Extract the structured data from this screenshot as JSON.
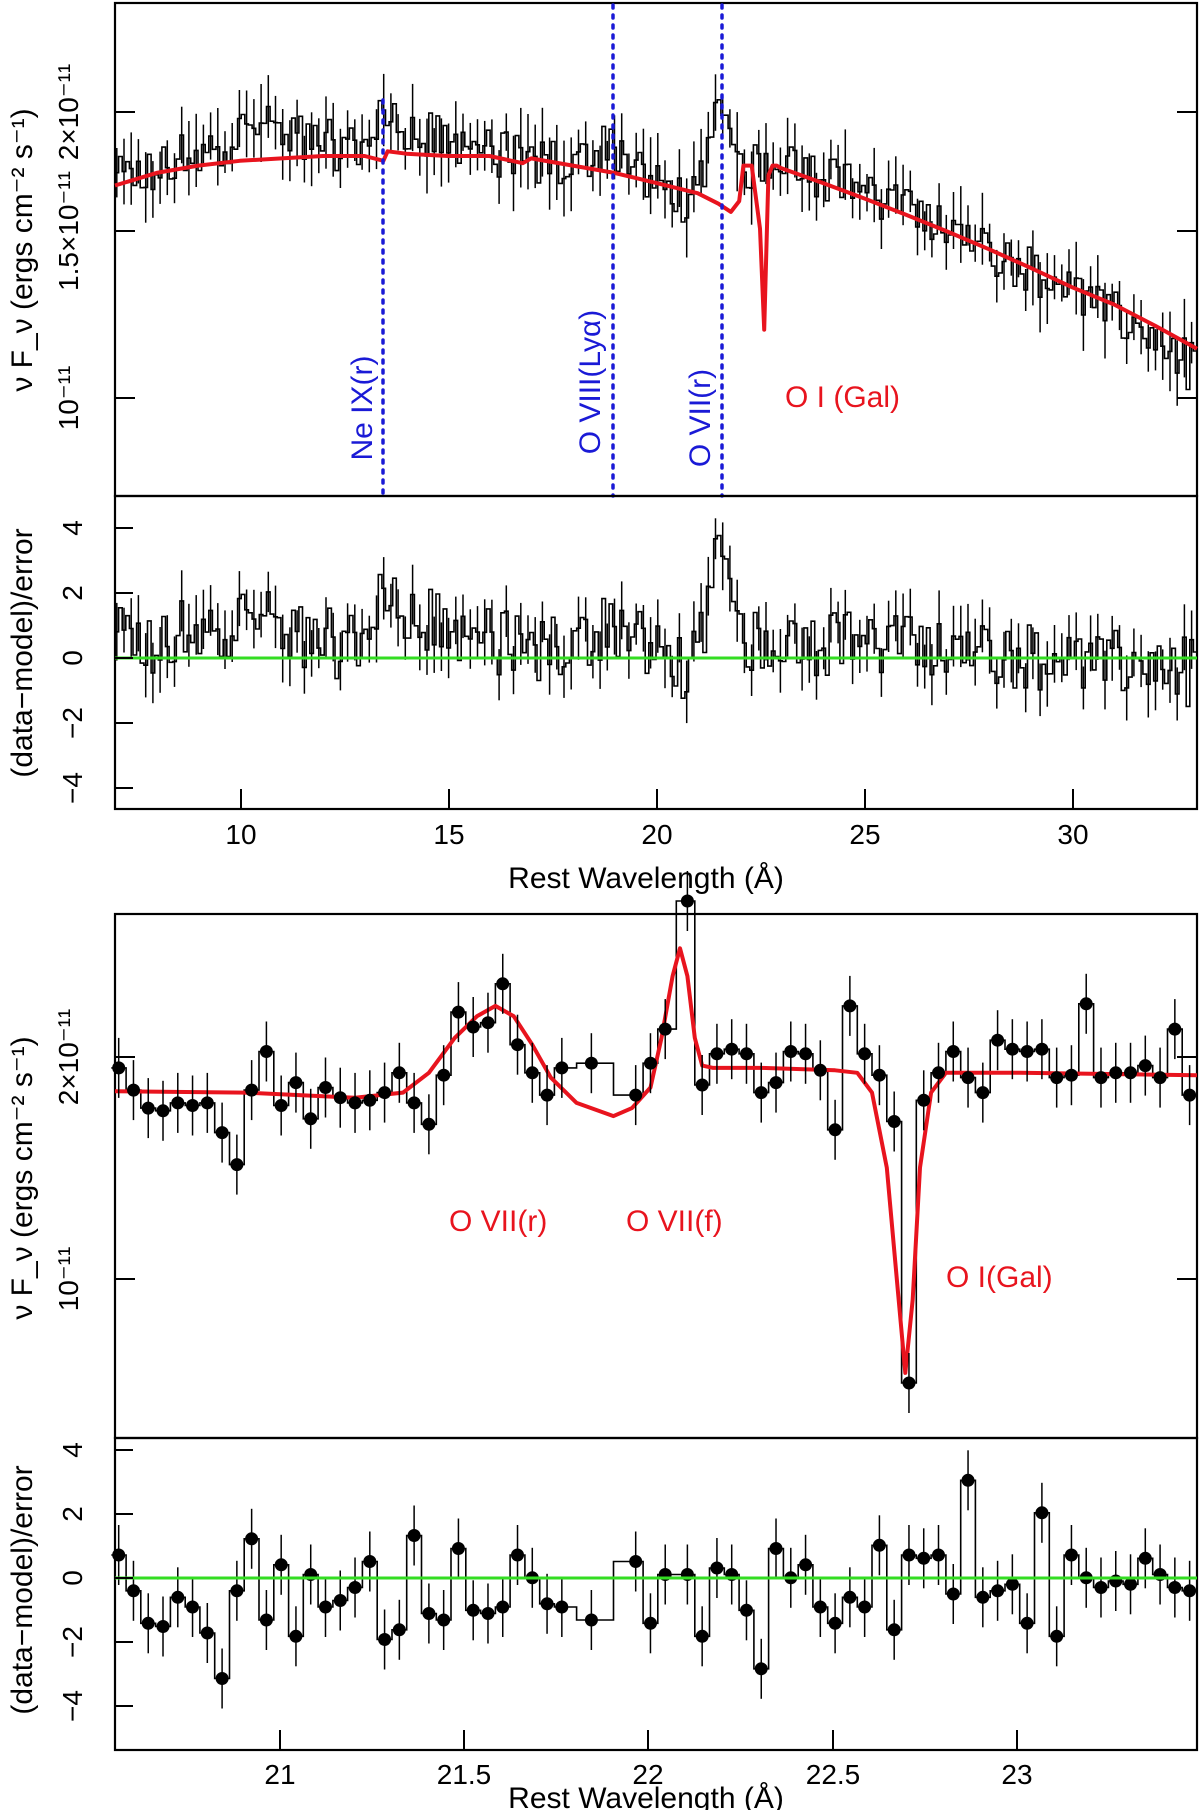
{
  "figure": {
    "panel_top": {
      "ylabel": "ν F_ν (ergs cm⁻² s⁻¹)",
      "ytick_labels": [
        "10⁻¹¹",
        "1.5×10⁻¹¹",
        "2×10⁻¹¹"
      ],
      "annotations": [
        "Ne IX(r)",
        "O VIII(Lyα)",
        "O VII(r)",
        "O I (Gal)"
      ],
      "resid_ylabel": "(data−model)/error",
      "resid_ticks": [
        "4",
        "2",
        "0",
        "−2",
        "−4"
      ],
      "xtick_labels": [
        "10",
        "15",
        "20",
        "25",
        "30"
      ],
      "xlabel": "Rest Wavelength (Å)"
    },
    "panel_bottom": {
      "ylabel": "ν F_ν (ergs cm⁻² s⁻¹)",
      "ytick_labels": [
        "10⁻¹¹",
        "2×10⁻¹¹"
      ],
      "annotations": [
        "O VII(r)",
        "O VII(f)",
        "O I(Gal)"
      ],
      "resid_ylabel": "(data−model)/error",
      "resid_ticks": [
        "4",
        "2",
        "0",
        "−2",
        "−4"
      ],
      "xtick_labels": [
        "21",
        "21.5",
        "22",
        "22.5",
        "23"
      ],
      "xlabel": "Rest Wavelength (Å)"
    }
  },
  "chart_data": [
    {
      "type": "line",
      "title": "",
      "xlabel": "Rest Wavelength (Å)",
      "ylabel": "ν F_ν (ergs cm⁻² s⁻¹)",
      "xlim": [
        7,
        33
      ],
      "ylim": [
        6.5e-12,
        2.4e-11
      ],
      "yscale": "log",
      "series": [
        {
          "name": "model",
          "color": "#e8141e",
          "x": [
            7,
            8,
            9,
            10,
            11,
            12,
            13,
            13.45,
            13.55,
            14,
            15,
            16,
            16.8,
            17,
            18,
            19,
            20,
            21,
            21.5,
            21.8,
            22,
            22.1,
            22.3,
            22.5,
            22.6,
            22.7,
            22.8,
            22.9,
            23,
            24,
            25,
            26,
            27,
            28,
            29,
            30,
            31,
            32,
            33
          ],
          "y": [
            1.48e-11,
            1.53e-11,
            1.56e-11,
            1.58e-11,
            1.59e-11,
            1.6e-11,
            1.6e-11,
            1.58e-11,
            1.62e-11,
            1.61e-11,
            1.6e-11,
            1.6e-11,
            1.57e-11,
            1.59e-11,
            1.56e-11,
            1.53e-11,
            1.49e-11,
            1.45e-11,
            1.41e-11,
            1.38e-11,
            1.42e-11,
            1.56e-11,
            1.56e-11,
            1.32e-11,
            1.01e-11,
            1.52e-11,
            1.56e-11,
            1.56e-11,
            1.55e-11,
            1.49e-11,
            1.43e-11,
            1.37e-11,
            1.31e-11,
            1.25e-11,
            1.19e-11,
            1.13e-11,
            1.08e-11,
            1.02e-11,
            9.6e-12
          ]
        },
        {
          "name": "data (binned)",
          "color": "#000000",
          "x": [
            7.3,
            8,
            9,
            10,
            10.5,
            11,
            12,
            13,
            13.4,
            13.6,
            14,
            15,
            16,
            17,
            18,
            18.9,
            19.5,
            20,
            21,
            21.6,
            22,
            22.5,
            23,
            24,
            25,
            26,
            27,
            28,
            29,
            30,
            31,
            32,
            32.8
          ],
          "y": [
            1.5e-11,
            1.55e-11,
            1.62e-11,
            1.7e-11,
            1.75e-11,
            1.7e-11,
            1.66e-11,
            1.62e-11,
            1.82e-11,
            1.76e-11,
            1.72e-11,
            1.66e-11,
            1.62e-11,
            1.58e-11,
            1.56e-11,
            1.66e-11,
            1.53e-11,
            1.47e-11,
            1.42e-11,
            1.88e-11,
            1.55e-11,
            1.58e-11,
            1.62e-11,
            1.52e-11,
            1.45e-11,
            1.38e-11,
            1.32e-11,
            1.26e-11,
            1.18e-11,
            1.12e-11,
            1.05e-11,
            9.8e-12,
            9.2e-12
          ]
        },
        {
          "name": "residuals (data−model)/error",
          "color": "#000000",
          "x": [
            7.3,
            8,
            9,
            10,
            10.5,
            11,
            12,
            13,
            13.4,
            13.6,
            14,
            15,
            16,
            17,
            18,
            18.9,
            19.5,
            20,
            21,
            21.6,
            22,
            22.5,
            23,
            24,
            25,
            26,
            27,
            28,
            29,
            30,
            31,
            32,
            32.8
          ],
          "y": [
            0.3,
            0.2,
            0.8,
            1.0,
            1.2,
            0.6,
            0.3,
            0.2,
            2.1,
            1.5,
            1.3,
            0.6,
            0.4,
            0.0,
            0.2,
            0.9,
            0.3,
            -0.2,
            -0.4,
            3.8,
            0.6,
            0.4,
            0.6,
            0.3,
            0.2,
            0.1,
            0.0,
            0.2,
            -0.2,
            -0.3,
            -0.4,
            -0.5,
            -0.6
          ]
        }
      ],
      "residual_ylim": [
        -4.8,
        4.8
      ],
      "zero_line": 0,
      "vertical_markers": [
        {
          "label": "Ne IX(r)",
          "x": 13.45
        },
        {
          "label": "O VIII(Lyα)",
          "x": 18.97
        },
        {
          "label": "O VII(r)",
          "x": 21.6
        }
      ],
      "annotations": [
        {
          "text": "O I (Gal)",
          "x": 22.7
        }
      ]
    },
    {
      "type": "line",
      "title": "",
      "xlabel": "Rest Wavelength (Å)",
      "ylabel": "ν F_ν (ergs cm⁻² s⁻¹)",
      "xlim": [
        20.55,
        23.48
      ],
      "ylim": [
        7e-12,
        2.5e-11
      ],
      "yscale": "log",
      "series": [
        {
          "name": "model",
          "color": "#e8141e",
          "x": [
            20.55,
            20.9,
            21.2,
            21.33,
            21.4,
            21.47,
            21.53,
            21.58,
            21.63,
            21.68,
            21.73,
            21.8,
            21.9,
            21.95,
            22.0,
            22.03,
            22.06,
            22.08,
            22.1,
            22.12,
            22.14,
            22.17,
            22.3,
            22.5,
            22.56,
            22.6,
            22.64,
            22.67,
            22.69,
            22.71,
            22.73,
            22.76,
            22.8,
            23.0,
            23.48
          ],
          "y": [
            1.625e-11,
            1.62e-11,
            1.6e-11,
            1.62e-11,
            1.7e-11,
            1.85e-11,
            1.95e-11,
            2e-11,
            1.95e-11,
            1.82e-11,
            1.68e-11,
            1.58e-11,
            1.53e-11,
            1.56e-11,
            1.64e-11,
            1.85e-11,
            2.15e-11,
            2.3e-11,
            2.15e-11,
            1.85e-11,
            1.73e-11,
            1.72e-11,
            1.72e-11,
            1.71e-11,
            1.7e-11,
            1.62e-11,
            1.35e-11,
            1e-11,
            8.2e-12,
            9.8e-12,
            1.35e-11,
            1.62e-11,
            1.7e-11,
            1.7e-11,
            1.69e-11
          ]
        },
        {
          "name": "data",
          "color": "#000000",
          "x": [
            20.56,
            20.6,
            20.64,
            20.68,
            20.72,
            20.76,
            20.8,
            20.84,
            20.88,
            20.92,
            20.96,
            21.0,
            21.04,
            21.08,
            21.12,
            21.16,
            21.2,
            21.24,
            21.28,
            21.32,
            21.36,
            21.4,
            21.44,
            21.48,
            21.52,
            21.56,
            21.6,
            21.64,
            21.68,
            21.72,
            21.76,
            21.84,
            21.96,
            22.0,
            22.04,
            22.1,
            22.14,
            22.18,
            22.22,
            22.26,
            22.3,
            22.34,
            22.38,
            22.42,
            22.46,
            22.5,
            22.54,
            22.58,
            22.62,
            22.66,
            22.7,
            22.74,
            22.78,
            22.82,
            22.86,
            22.9,
            22.94,
            22.98,
            23.02,
            23.06,
            23.1,
            23.14,
            23.18,
            23.22,
            23.26,
            23.3,
            23.34,
            23.38,
            23.42,
            23.46
          ],
          "y": [
            1.72e-11,
            1.63e-11,
            1.56e-11,
            1.55e-11,
            1.58e-11,
            1.57e-11,
            1.58e-11,
            1.47e-11,
            1.36e-11,
            1.63e-11,
            1.79e-11,
            1.57e-11,
            1.66e-11,
            1.52e-11,
            1.64e-11,
            1.6e-11,
            1.58e-11,
            1.59e-11,
            1.62e-11,
            1.7e-11,
            1.58e-11,
            1.5e-11,
            1.69e-11,
            1.97e-11,
            1.9e-11,
            1.92e-11,
            2.11e-11,
            1.82e-11,
            1.7e-11,
            1.61e-11,
            1.72e-11,
            1.74e-11,
            1.61e-11,
            1.74e-11,
            1.89e-11,
            2.58e-11,
            1.65e-11,
            1.78e-11,
            1.8e-11,
            1.78e-11,
            1.62e-11,
            1.66e-11,
            1.79e-11,
            1.78e-11,
            1.71e-11,
            1.48e-11,
            2e-11,
            1.78e-11,
            1.69e-11,
            1.51e-11,
            8e-12,
            1.59e-11,
            1.7e-11,
            1.79e-11,
            1.68e-11,
            1.62e-11,
            1.84e-11,
            1.8e-11,
            1.79e-11,
            1.8e-11,
            1.68e-11,
            1.69e-11,
            2.01e-11,
            1.68e-11,
            1.7e-11,
            1.7e-11,
            1.73e-11,
            1.68e-11,
            1.89e-11,
            1.61e-11
          ]
        },
        {
          "name": "residuals (data−model)/error",
          "color": "#000000",
          "x": [
            20.56,
            20.6,
            20.64,
            20.68,
            20.72,
            20.76,
            20.8,
            20.84,
            20.88,
            20.92,
            20.96,
            21.0,
            21.04,
            21.08,
            21.12,
            21.16,
            21.2,
            21.24,
            21.28,
            21.32,
            21.36,
            21.4,
            21.44,
            21.48,
            21.52,
            21.56,
            21.6,
            21.64,
            21.68,
            21.72,
            21.76,
            21.84,
            21.96,
            22.0,
            22.04,
            22.1,
            22.14,
            22.18,
            22.22,
            22.26,
            22.3,
            22.34,
            22.38,
            22.42,
            22.46,
            22.5,
            22.54,
            22.58,
            22.62,
            22.66,
            22.7,
            22.74,
            22.78,
            22.82,
            22.86,
            22.9,
            22.94,
            22.98,
            23.02,
            23.06,
            23.1,
            23.14,
            23.18,
            23.22,
            23.26,
            23.3,
            23.34,
            23.38,
            23.42,
            23.46
          ],
          "y": [
            1.2,
            0.1,
            -0.9,
            -1.0,
            -0.1,
            -0.4,
            -1.2,
            -2.6,
            0.1,
            1.7,
            -0.8,
            0.9,
            -1.3,
            0.6,
            -0.4,
            -0.2,
            0.2,
            1.0,
            -1.4,
            -1.1,
            1.8,
            -0.6,
            -0.8,
            1.4,
            -0.5,
            -0.6,
            -0.4,
            1.2,
            0.5,
            -0.3,
            -0.4,
            -0.8,
            1.0,
            -0.9,
            0.6,
            0.6,
            -1.3,
            0.8,
            0.6,
            -0.5,
            -2.3,
            1.4,
            0.5,
            0.9,
            -0.4,
            -0.9,
            -0.1,
            -0.4,
            1.5,
            -1.1,
            1.2,
            1.1,
            1.2,
            0.0,
            3.5,
            -0.1,
            0.1,
            0.3,
            -0.9,
            2.5,
            -1.3,
            1.2,
            0.5,
            0.2,
            0.4,
            0.3,
            1.1,
            0.6,
            0.2,
            0.1
          ]
        }
      ],
      "residual_ylim": [
        -4.8,
        4.8
      ],
      "zero_line": 0,
      "annotations": [
        {
          "text": "O VII(r)",
          "x": 21.6
        },
        {
          "text": "O VII(f)",
          "x": 22.1
        },
        {
          "text": "O I(Gal)",
          "x": 22.7
        }
      ]
    }
  ]
}
